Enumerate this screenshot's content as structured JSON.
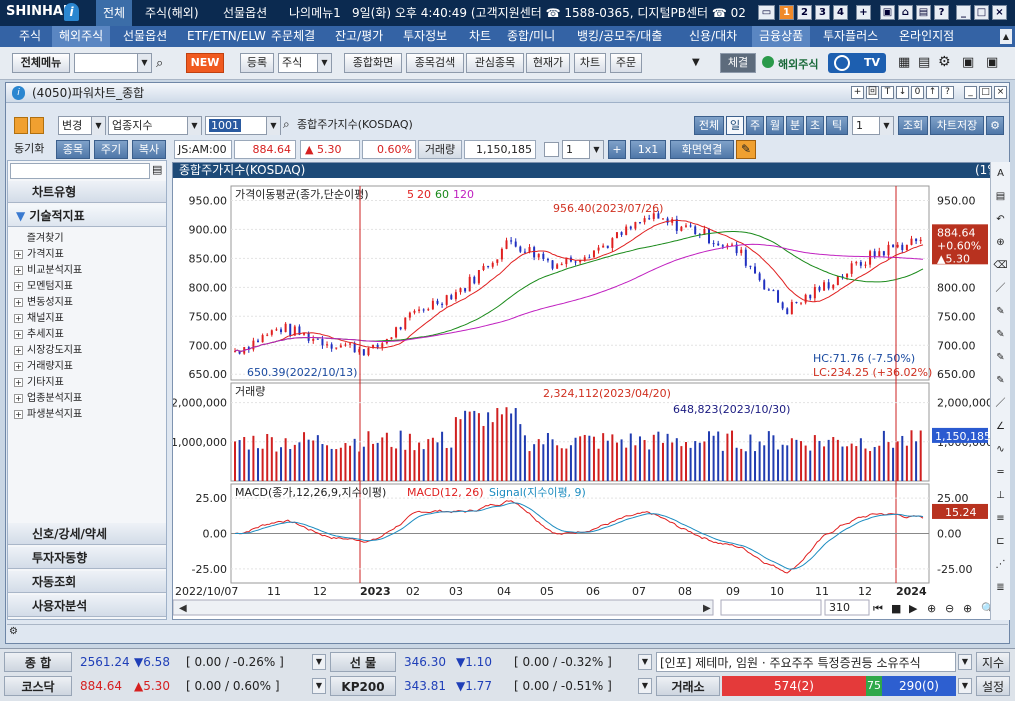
{
  "titlebar": {
    "logo": "SHINHAN",
    "menus": [
      "전체",
      "주식(해외)",
      "선물옵션",
      "나의메뉴1"
    ],
    "info": "9일(화) 오후 4:40:49 (고객지원센터 ☎ 1588-0365, 디지털PB센터 ☎ 02",
    "num_buttons": [
      "1",
      "2",
      "3",
      "4",
      "+"
    ]
  },
  "menubar": [
    "주식",
    "해외주식",
    "선물옵션",
    "ETF/ETN/ELW",
    "주문체결",
    "잔고/평가",
    "투자정보",
    "차트",
    "종합/미니",
    "뱅킹/공모주/대출",
    "신용/대차",
    "금융상품",
    "투자플러스",
    "온라인지점"
  ],
  "toolbar": {
    "all_menu": "전체메뉴",
    "new_badge": "NEW",
    "register": "등록",
    "stock_combo": "주식",
    "buttons": [
      "종합화면",
      "종목검색",
      "관심종목",
      "현재가",
      "차트",
      "주문"
    ],
    "conclude": "체결",
    "overseas": "해외주식",
    "tv": "TV"
  },
  "window": {
    "title": "(4050)파워차트_종합",
    "ctrl_buttons": [
      "+",
      "回",
      "T",
      "↓",
      "0",
      "↑",
      "?"
    ]
  },
  "controls": {
    "change_combo": "변경",
    "sector_combo": "업종지수",
    "code": "1001",
    "name": "종합주가지수(KOSDAQ)",
    "period_tabs": [
      "전체",
      "일",
      "주",
      "월",
      "분",
      "초",
      "틱"
    ],
    "count": "1",
    "lookup": "조회",
    "save": "차트저장",
    "sync": "동기화",
    "sub_tabs": [
      "종목",
      "주기",
      "복사"
    ],
    "time_label": "JS:AM:00",
    "price": "884.64",
    "change": "▲ 5.30",
    "change_pct": "0.60%",
    "volume_label": "거래량",
    "volume": "1,150,185",
    "count2": "1",
    "ratio": "1x1",
    "link": "화면연결"
  },
  "leftpanel": {
    "chart_type": "차트유형",
    "tech": "기술적지표",
    "favorites": "즐겨찾기",
    "tree": [
      "가격지표",
      "비교분석지표",
      "모멘텀지표",
      "변동성지표",
      "채널지표",
      "추세지표",
      "시장강도지표",
      "거래량지표",
      "기타지표",
      "업종분석지표",
      "파생분석지표"
    ],
    "bottom": [
      "신호/강세/약세",
      "투자자동향",
      "자동조회",
      "사용자분석"
    ]
  },
  "chart": {
    "header_title": "종합주가지수(KOSDAQ)",
    "header_period": "(1일)",
    "price_legend": "가격이동평균(종가,단순이평)",
    "ma_periods": [
      "5",
      "20",
      "60",
      "120"
    ],
    "ma_colors": [
      "#e02020",
      "#e02020",
      "#1a8a1a",
      "#c020c0"
    ],
    "high_annot": "956.40(2023/07/26)",
    "low_annot": "650.39(2022/10/13)",
    "hc": "HC:71.76 (-7.50%)",
    "lc": "LC:234.25 (+36.02%)",
    "price_ticks": [
      "950.00",
      "900.00",
      "850.00",
      "800.00",
      "750.00",
      "700.00",
      "650.00"
    ],
    "price_tag": [
      "884.64",
      "+0.60%",
      "▲5.30"
    ],
    "vol_legend": "거래량",
    "vol_max_annot": "2,324,112(2023/04/20)",
    "vol_annot2": "648,823(2023/10/30)",
    "vol_ticks": [
      "2,000,000",
      "1,000,000"
    ],
    "vol_tag": "1,150,185",
    "macd_legend": "MACD(종가,12,26,9,지수이평)",
    "macd_name": "MACD(12, 26)",
    "signal_name": "Signal(지수이평, 9)",
    "macd_ticks": [
      "25.00",
      "0.00",
      "-25.00"
    ],
    "macd_tag": "15.24",
    "x_labels": [
      "2022/10/07",
      "11",
      "12",
      "2023",
      "02",
      "03",
      "04",
      "05",
      "06",
      "07",
      "08",
      "09",
      "10",
      "11",
      "12",
      "2024"
    ],
    "scroll_count": "310"
  },
  "chart_data": {
    "type": "line",
    "x": [
      "2022/10",
      "2022/11",
      "2022/12",
      "2023/01",
      "2023/02",
      "2023/03",
      "2023/04",
      "2023/05",
      "2023/06",
      "2023/07",
      "2023/08",
      "2023/09",
      "2023/10",
      "2023/11",
      "2023/12",
      "2024/01"
    ],
    "series": [
      {
        "name": "종합주가지수(KOSDAQ)",
        "values": [
          690,
          730,
          705,
          690,
          760,
          800,
          880,
          840,
          870,
          920,
          900,
          860,
          760,
          810,
          860,
          884.64
        ]
      }
    ],
    "ylim": [
      640,
      975
    ]
  },
  "statusbar": {
    "row1": {
      "label": "종  합",
      "price": "2561.24",
      "chg": "▼6.58",
      "paren": "[ 0.00  / -0.26% ]",
      "label2": "선  물",
      "price2": "346.30",
      "chg2": "▼1.10",
      "paren2": "[ 0.00  / -0.32% ]",
      "news": "[인포] 제테마, 임원 · 주요주주 특정증권등 소유주식",
      "btn": "지수"
    },
    "row2": {
      "label": "코스닥",
      "price": "884.64",
      "chg": "▲5.30",
      "paren": "[ 0.00  / 0.60% ]",
      "label2": "KP200",
      "price2": "343.81",
      "chg2": "▼1.77",
      "paren2": "[ 0.00  / -0.51% ]",
      "exch": "거래소",
      "up": "574(2)",
      "flat": "75",
      "down": "290(0)",
      "btn": "설정"
    }
  }
}
